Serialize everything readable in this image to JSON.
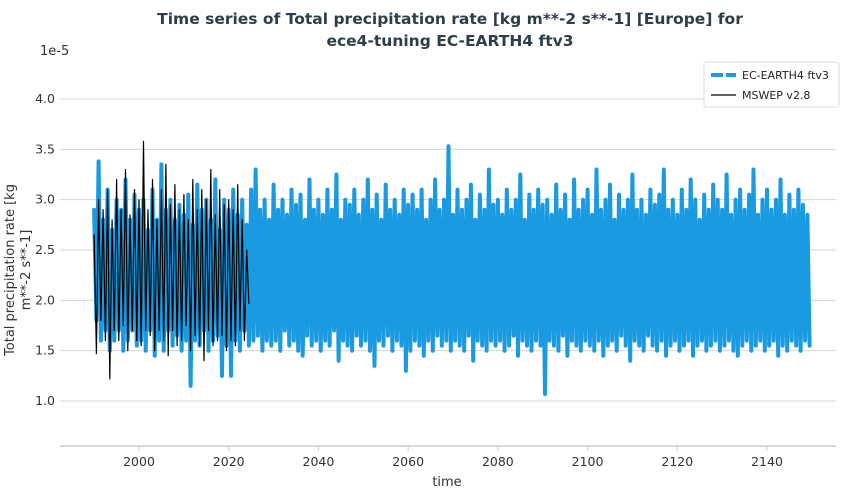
{
  "chart_data": {
    "type": "line",
    "title_line1": "Time series of Total precipitation rate [kg m**-2 s**-1] [Europe] for",
    "title_line2": "ece4-tuning EC-EARTH4 ftv3",
    "xlabel": "time",
    "ylabel_line1": "Total precipitation rate [kg",
    "ylabel_line2": "m**-2 s**-1]",
    "y_scale_label": "1e-5",
    "xlim": [
      1983.8,
      2157
    ],
    "ylim": [
      0.55,
      4.5
    ],
    "x_ticks": [
      2000,
      2020,
      2040,
      2060,
      2080,
      2100,
      2120,
      2140
    ],
    "y_ticks": [
      "1.0",
      "1.5",
      "2.0",
      "2.5",
      "3.0",
      "3.5",
      "4.0"
    ],
    "grid": "horizontal",
    "legend_placement": "top-right",
    "series": [
      {
        "name": "EC-EARTH4 ftv3",
        "color": "#1a9ae0",
        "style": "dashed-thick",
        "x_start": 1990,
        "x_step": 0.5,
        "values": [
          2.9,
          1.8,
          3.38,
          1.6,
          2.8,
          1.7,
          3.1,
          1.5,
          2.7,
          1.6,
          3.0,
          1.7,
          2.9,
          1.5,
          3.2,
          1.6,
          2.8,
          1.7,
          3.05,
          1.55,
          2.9,
          1.6,
          3.0,
          1.5,
          2.7,
          1.7,
          3.1,
          1.45,
          2.8,
          1.6,
          3.35,
          1.5,
          2.9,
          1.7,
          3.0,
          1.55,
          2.8,
          1.65,
          2.95,
          1.5,
          2.85,
          1.6,
          3.05,
          1.15,
          2.75,
          1.6,
          3.15,
          1.55,
          2.9,
          1.7,
          3.0,
          1.5,
          2.8,
          1.6,
          3.2,
          1.65,
          2.7,
          1.25,
          3.0,
          1.55,
          2.9,
          1.25,
          3.1,
          1.6,
          2.85,
          1.5,
          3.0,
          1.7,
          2.75,
          1.55,
          3.1,
          1.6,
          3.3,
          1.65,
          2.9,
          1.5,
          3.0,
          1.6,
          2.8,
          1.55,
          3.15,
          1.6,
          2.9,
          1.5,
          3.0,
          1.7,
          2.85,
          1.55,
          3.1,
          1.6,
          2.95,
          1.5,
          3.05,
          1.45,
          2.8,
          1.65,
          3.2,
          1.55,
          2.9,
          1.6,
          3.0,
          1.5,
          2.85,
          1.6,
          3.1,
          1.55,
          2.9,
          1.7,
          3.25,
          1.4,
          2.8,
          1.6,
          3.0,
          1.55,
          2.95,
          1.5,
          3.1,
          1.65,
          2.85,
          1.55,
          3.0,
          1.6,
          3.2,
          1.5,
          2.9,
          1.35,
          3.05,
          1.6,
          2.8,
          1.55,
          3.15,
          1.65,
          2.9,
          1.5,
          3.0,
          1.6,
          2.85,
          1.55,
          3.1,
          1.3,
          2.95,
          1.5,
          3.05,
          1.6,
          2.9,
          1.55,
          3.1,
          1.45,
          2.8,
          1.6,
          3.0,
          1.5,
          3.2,
          1.65,
          2.9,
          1.55,
          3.0,
          1.6,
          3.53,
          1.5,
          2.85,
          1.6,
          3.1,
          1.55,
          2.9,
          1.5,
          3.0,
          1.65,
          3.15,
          1.4,
          2.8,
          1.6,
          3.05,
          1.55,
          2.9,
          1.5,
          3.3,
          1.6,
          2.95,
          1.55,
          3.0,
          1.6,
          2.85,
          1.5,
          3.1,
          1.55,
          2.9,
          1.65,
          3.0,
          1.45,
          3.25,
          1.6,
          2.8,
          1.55,
          3.05,
          1.5,
          2.9,
          1.6,
          3.1,
          1.55,
          2.95,
          1.07,
          3.0,
          1.6,
          2.85,
          1.55,
          3.15,
          1.5,
          2.9,
          1.65,
          3.05,
          1.45,
          2.8,
          1.6,
          3.2,
          1.55,
          2.9,
          1.5,
          3.0,
          1.6,
          3.1,
          1.55,
          2.85,
          1.5,
          3.3,
          1.6,
          2.9,
          1.45,
          3.0,
          1.55,
          3.15,
          1.6,
          2.8,
          1.5,
          3.05,
          1.65,
          2.9,
          1.55,
          3.0,
          1.4,
          3.25,
          1.6,
          2.9,
          1.55,
          3.0,
          1.5,
          2.85,
          1.65,
          3.1,
          1.55,
          2.95,
          1.5,
          3.05,
          1.6,
          3.3,
          1.45,
          2.9,
          1.55,
          3.0,
          1.6,
          2.85,
          1.5,
          3.1,
          1.55,
          2.9,
          1.6,
          3.2,
          1.45,
          3.0,
          1.55,
          2.8,
          1.6,
          3.05,
          1.5,
          2.9,
          1.55,
          3.15,
          1.6,
          3.0,
          1.5,
          2.9,
          1.55,
          3.25,
          1.6,
          2.85,
          1.5,
          3.0,
          1.45,
          3.1,
          1.55,
          2.9,
          1.6,
          3.05,
          1.5,
          3.3,
          1.55,
          2.85,
          1.6,
          3.0,
          1.5,
          3.1,
          1.55,
          2.9,
          1.6,
          3.0,
          1.45,
          3.2,
          1.55,
          2.85,
          1.5,
          3.05,
          1.6,
          2.9,
          1.55,
          3.1,
          1.5,
          2.95,
          1.6,
          2.85,
          1.55
        ]
      },
      {
        "name": "MSWEP v2.8",
        "color": "#000000",
        "style": "solid-thin",
        "x_start": 1990,
        "x_step": 0.5,
        "values": [
          2.65,
          1.47,
          3.0,
          1.8,
          2.9,
          1.6,
          3.1,
          1.22,
          2.8,
          1.7,
          3.2,
          1.6,
          2.9,
          1.75,
          3.3,
          1.5,
          2.85,
          1.7,
          3.1,
          1.6,
          3.0,
          1.55,
          3.58,
          1.7,
          2.9,
          1.65,
          3.2,
          1.5,
          2.8,
          1.7,
          3.1,
          1.6,
          3.35,
          1.45,
          2.95,
          1.7,
          3.15,
          1.55,
          2.9,
          1.6,
          3.05,
          1.75,
          2.8,
          1.5,
          3.2,
          1.65,
          2.9,
          1.55,
          3.1,
          1.4,
          3.0,
          1.7,
          3.3,
          1.55,
          2.85,
          1.6,
          3.1,
          1.65,
          2.95,
          1.5,
          3.0,
          1.6,
          2.9,
          1.55,
          3.15,
          1.7,
          2.8,
          1.6,
          2.5,
          1.97
        ]
      }
    ]
  }
}
